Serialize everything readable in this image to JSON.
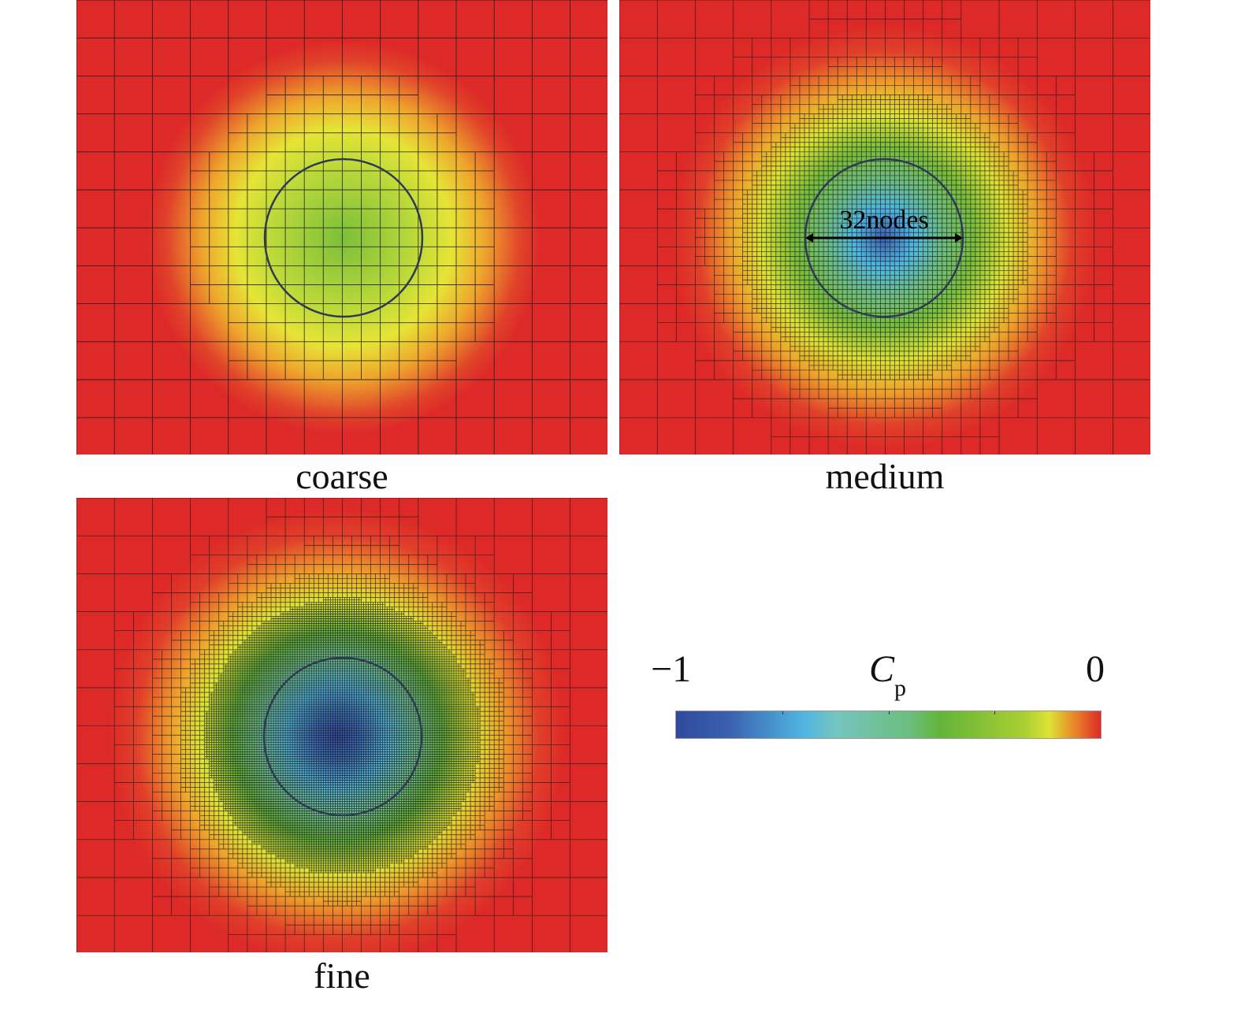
{
  "panels": [
    {
      "id": "coarse",
      "label": "coarse",
      "levels": 2
    },
    {
      "id": "medium",
      "label": "medium",
      "levels": 4,
      "annotation": "32nodes"
    },
    {
      "id": "fine",
      "label": "fine",
      "levels": 5
    }
  ],
  "colorbar": {
    "title": "C",
    "title_subscript": "p",
    "min_label": "−1",
    "max_label": "0",
    "range": [
      -1,
      0
    ],
    "colors": [
      "#2f4a9c",
      "#4fb6e0",
      "#76c5bf",
      "#63b43a",
      "#dde233",
      "#e8842a",
      "#dd2a28"
    ]
  }
}
